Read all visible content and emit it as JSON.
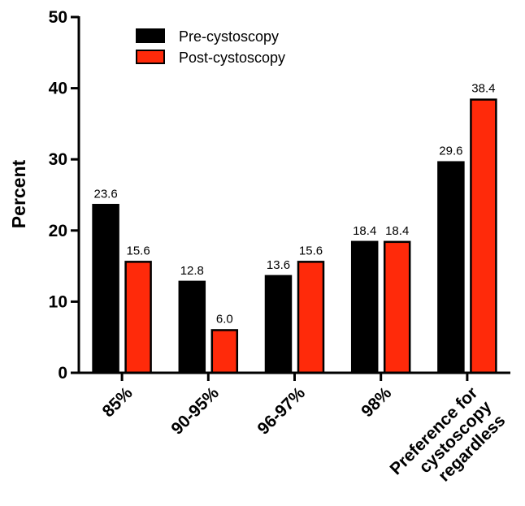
{
  "chart_data": {
    "type": "bar",
    "ylabel": "Percent",
    "xlabel": "",
    "ylim": [
      0,
      50
    ],
    "yticks": [
      "0",
      "10",
      "20",
      "30",
      "40",
      "50"
    ],
    "categories": [
      [
        "85%"
      ],
      [
        "90-95%"
      ],
      [
        "96-97%"
      ],
      [
        "98%"
      ],
      [
        "Preference for",
        "cystoscopy",
        "regardless"
      ]
    ],
    "series": [
      {
        "name": "Pre-cystoscopy",
        "color": "#000000",
        "values": [
          23.6,
          12.8,
          13.6,
          18.4,
          29.6
        ],
        "labels": [
          "23.6",
          "12.8",
          "13.6",
          "18.4",
          "29.6"
        ]
      },
      {
        "name": "Post-cystoscopy",
        "color": "#ff2a0a",
        "values": [
          15.6,
          6.0,
          15.6,
          18.4,
          38.4
        ],
        "labels": [
          "15.6",
          "6.0",
          "15.6",
          "18.4",
          "38.4"
        ]
      }
    ],
    "legend": "top-left",
    "grid": false
  }
}
